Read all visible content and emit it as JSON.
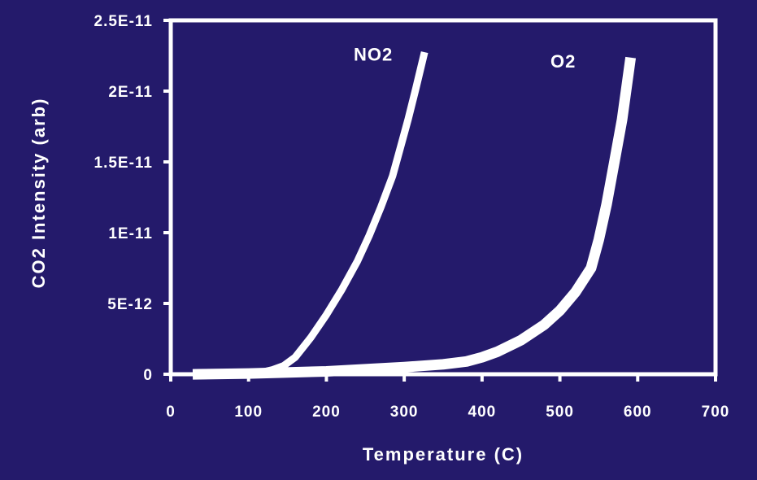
{
  "colors": {
    "background": "#241a6b",
    "foreground": "#ffffff"
  },
  "chart_data": {
    "type": "line",
    "xlabel": "Temperature (C)",
    "ylabel": "CO2 Intensity (arb)",
    "xlim": [
      0,
      700
    ],
    "ylim": [
      0,
      2.5e-11
    ],
    "x_ticks": [
      "0",
      "100",
      "200",
      "300",
      "400",
      "500",
      "600",
      "700"
    ],
    "y_ticks": [
      "0",
      "5E-12",
      "1E-11",
      "1.5E-11",
      "2E-11",
      "2.5E-11"
    ],
    "grid": false,
    "series": [
      {
        "name": "NO2",
        "color": "#ffffff",
        "x": [
          35,
          60,
          90,
          110,
          130,
          145,
          160,
          180,
          200,
          220,
          240,
          255,
          270,
          285,
          295,
          305,
          315,
          325
        ],
        "y": [
          0,
          0,
          0,
          5e-14,
          3e-13,
          6e-13,
          1.2e-12,
          2.6e-12,
          4.2e-12,
          6e-12,
          8e-12,
          9.8e-12,
          1.18e-11,
          1.4e-11,
          1.6e-11,
          1.8e-11,
          2.02e-11,
          2.25e-11
        ]
      },
      {
        "name": "O2",
        "color": "#ffffff",
        "x": [
          35,
          100,
          200,
          300,
          350,
          380,
          400,
          420,
          450,
          480,
          500,
          520,
          540,
          550,
          560,
          570,
          580,
          590
        ],
        "y": [
          0,
          5e-14,
          2e-13,
          5e-13,
          7e-13,
          9e-13,
          1.2e-12,
          1.6e-12,
          2.4e-12,
          3.5e-12,
          4.5e-12,
          5.8e-12,
          7.5e-12,
          9.5e-12,
          1.2e-11,
          1.5e-11,
          1.8e-11,
          2.2e-11
        ]
      }
    ]
  }
}
